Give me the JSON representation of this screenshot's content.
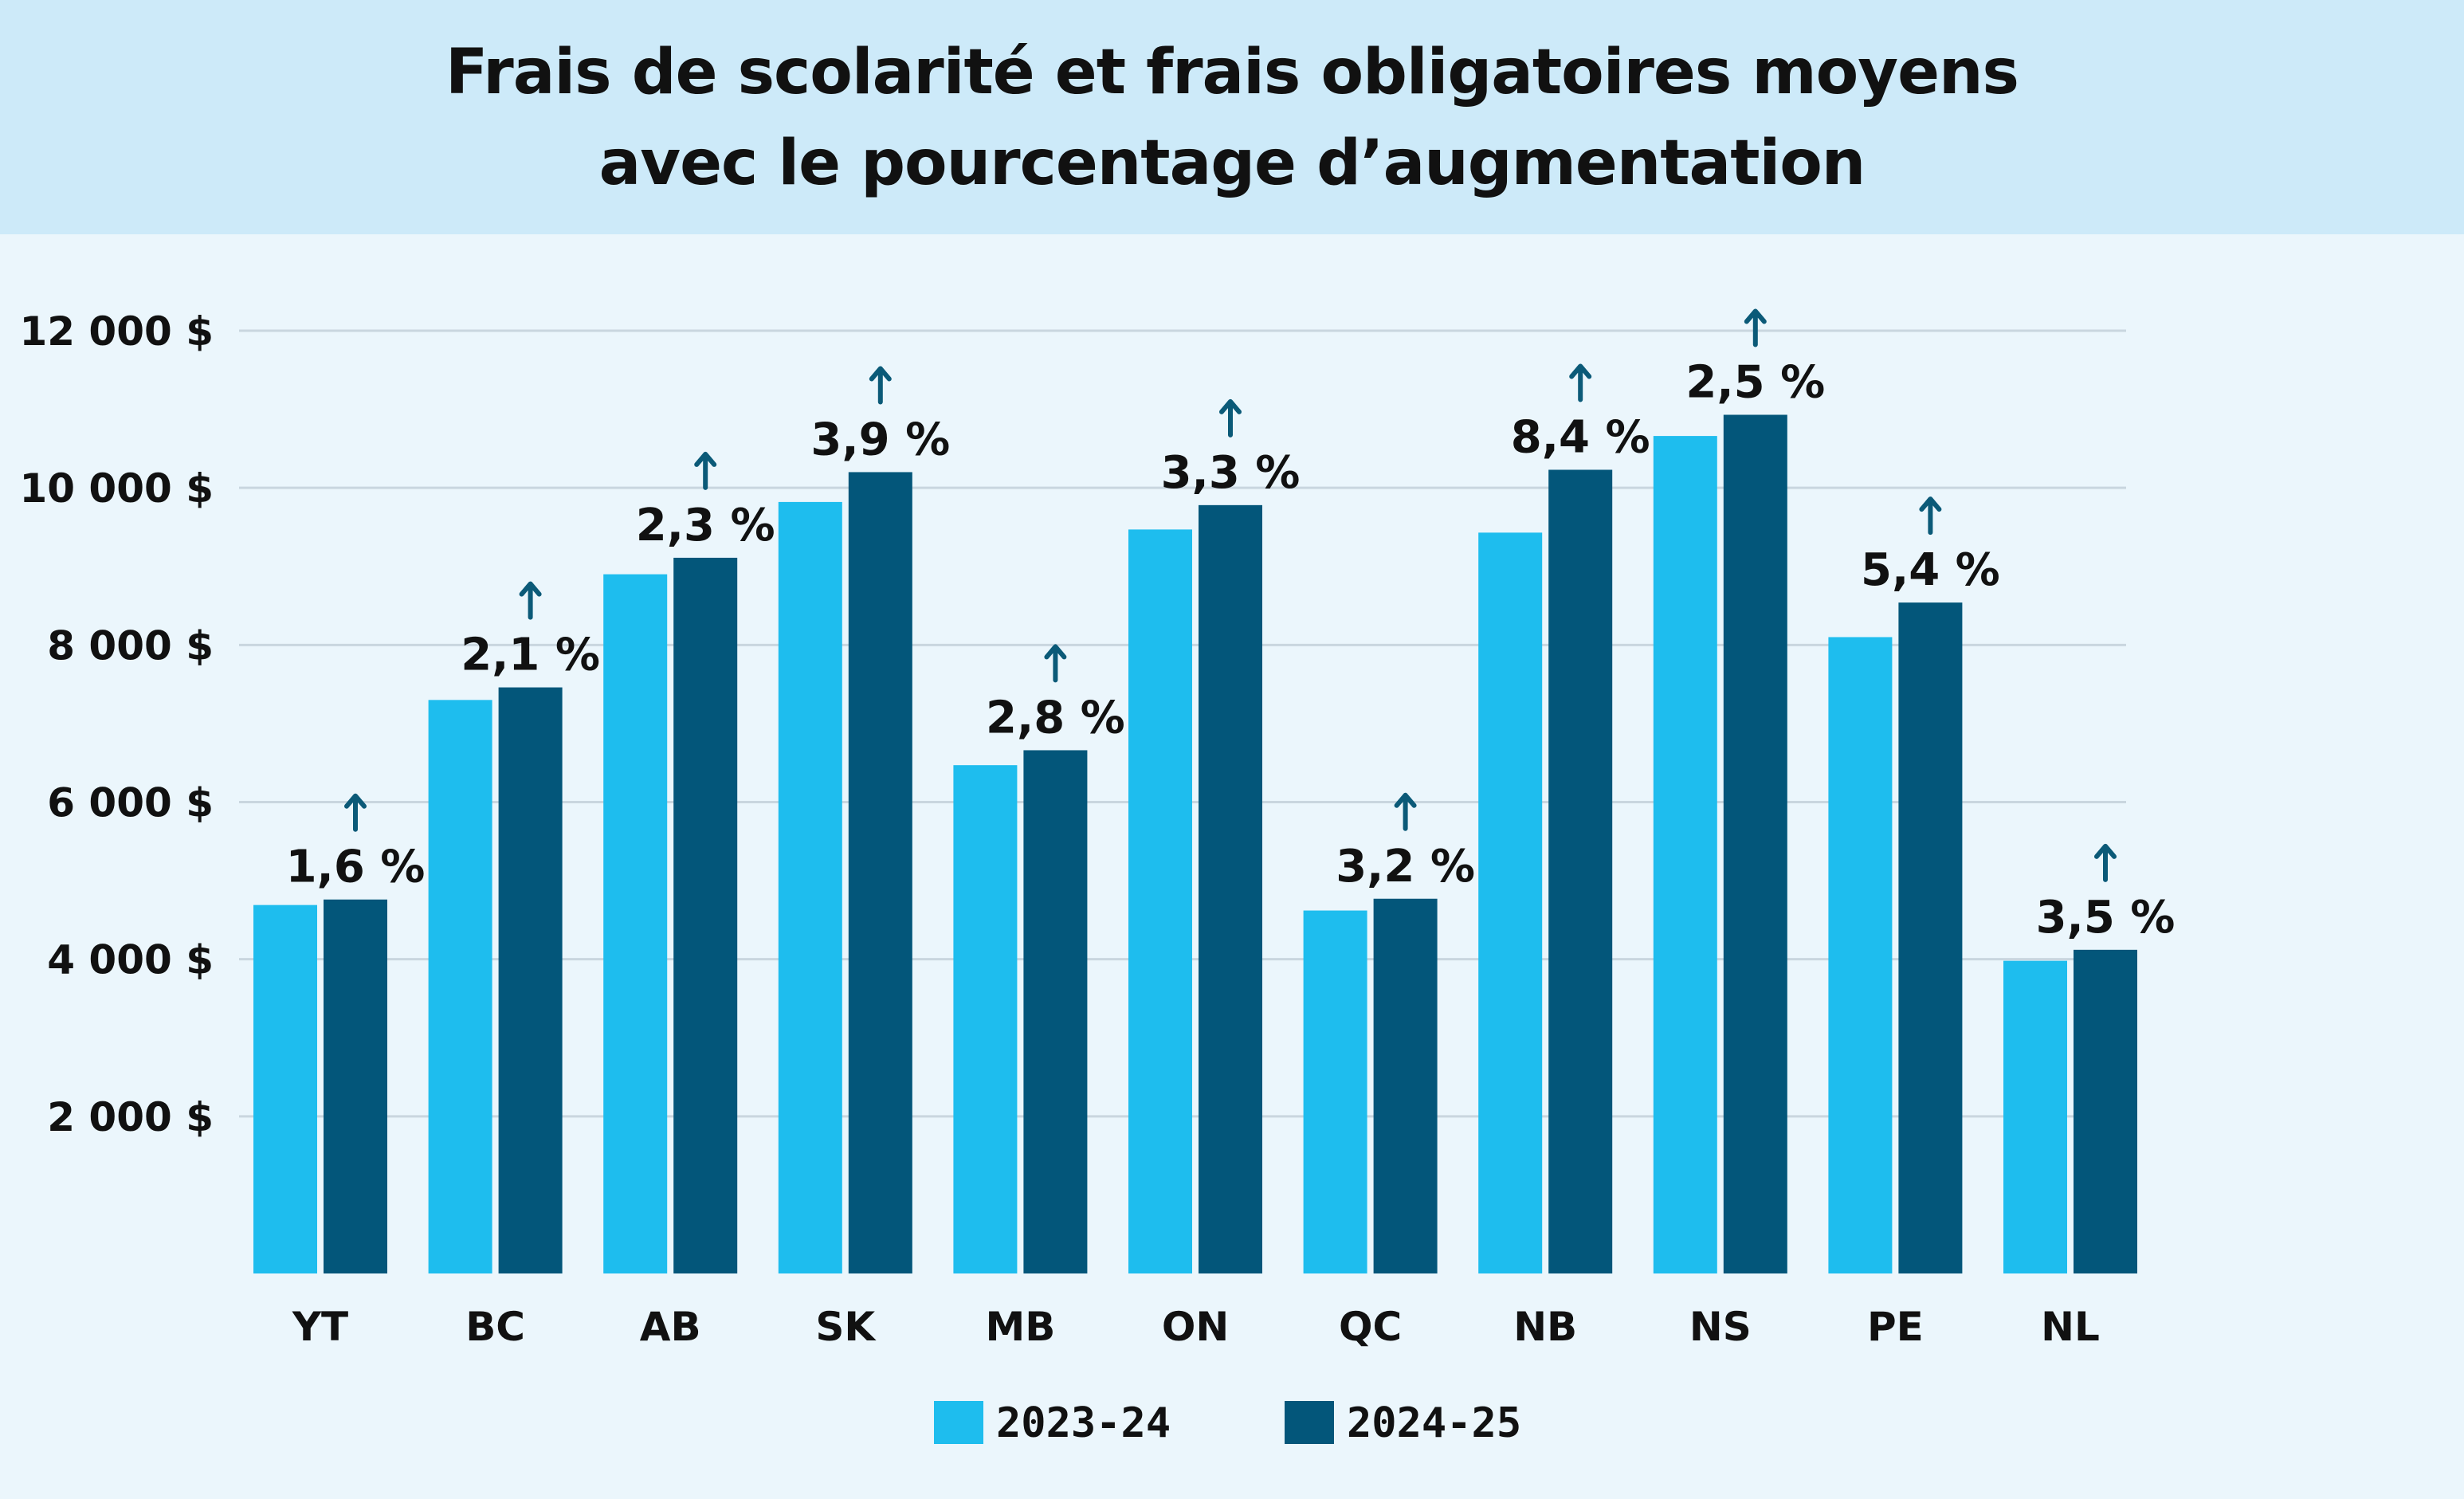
{
  "title": {
    "line1": "Frais de scolarité et frais obligatoires moyens",
    "line2": "avec le pourcentage d’augmentation"
  },
  "colors": {
    "background": "#ebf6fc",
    "title_band": "#cdeaf9",
    "series_2023": "#1ebdee",
    "series_2024": "#03567a",
    "gridline": "#c9d6df",
    "arrow": "#0b5a78"
  },
  "chart_data": {
    "type": "bar",
    "title": "Frais de scolarité et frais obligatoires moyens avec le pourcentage d’augmentation",
    "categories": [
      "YT",
      "BC",
      "AB",
      "SK",
      "MB",
      "ON",
      "QC",
      "NB",
      "NS",
      "PE",
      "NL"
    ],
    "series": [
      {
        "name": "2023-24",
        "values": [
          4690,
          7300,
          8900,
          9820,
          6470,
          9470,
          4620,
          9430,
          10660,
          8100,
          3980
        ]
      },
      {
        "name": "2024-25",
        "values": [
          4760,
          7460,
          9110,
          10200,
          6660,
          9780,
          4770,
          10230,
          10930,
          8540,
          4120
        ]
      }
    ],
    "increase_labels": [
      "1,6 %",
      "2,1 %",
      "2,3 %",
      "3,9 %",
      "2,8 %",
      "3,3 %",
      "3,2 %",
      "8,4 %",
      "2,5 %",
      "5,4 %",
      "3,5 %"
    ],
    "increase_icon": "up-arrow-icon",
    "yticks": [
      2000,
      4000,
      6000,
      8000,
      10000,
      12000
    ],
    "ytick_labels": [
      "2 000 $",
      "4 000 $",
      "6 000 $",
      "8 000 $",
      "10 000 $",
      "12 000 $"
    ],
    "ylim": [
      0,
      12000
    ],
    "grid": true,
    "legend_position": "bottom-center"
  }
}
